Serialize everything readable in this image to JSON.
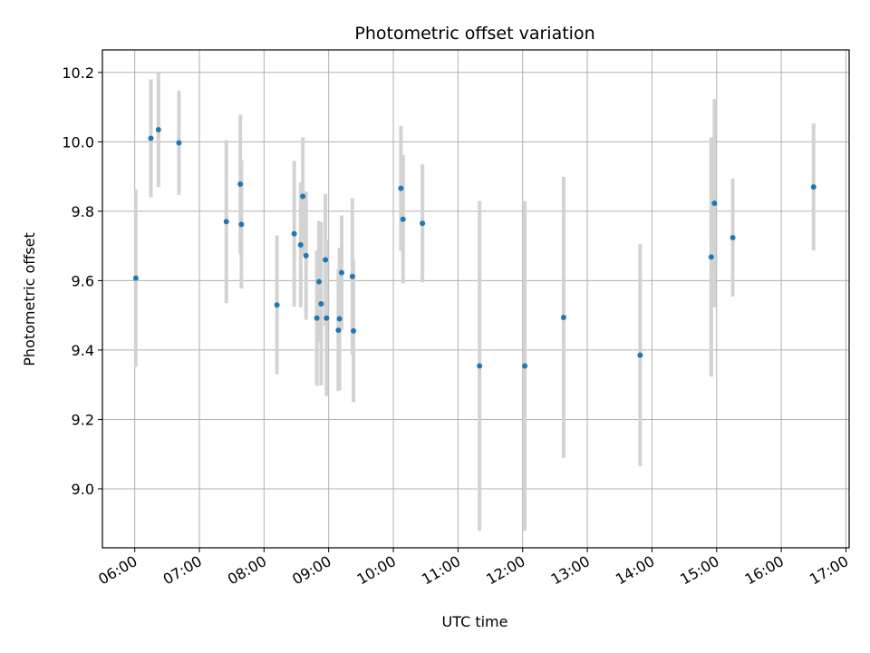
{
  "chart_data": {
    "type": "scatter",
    "title": "Photometric offset variation",
    "xlabel": "UTC time",
    "ylabel": "Photometric offset",
    "x_is_time": true,
    "xlim": [
      "05:30",
      "17:03"
    ],
    "ylim": [
      8.83,
      10.265
    ],
    "x_ticks": [
      "06:00",
      "07:00",
      "08:00",
      "09:00",
      "10:00",
      "11:00",
      "12:00",
      "13:00",
      "14:00",
      "15:00",
      "16:00",
      "17:00"
    ],
    "y_ticks": [
      "9.0",
      "9.2",
      "9.4",
      "9.6",
      "9.8",
      "10.0",
      "10.2"
    ],
    "grid": true,
    "marker_color": "#1f77b4",
    "errorbar_color": "#d3d3d3",
    "series": [
      {
        "points": [
          {
            "x": "06:01",
            "y": 9.607,
            "err": 0.255
          },
          {
            "x": "06:15",
            "y": 10.01,
            "err": 0.17
          },
          {
            "x": "06:22",
            "y": 10.035,
            "err": 0.165
          },
          {
            "x": "06:41",
            "y": 9.997,
            "err": 0.15
          },
          {
            "x": "07:25",
            "y": 9.77,
            "err": 0.235
          },
          {
            "x": "07:38",
            "y": 9.878,
            "err": 0.2
          },
          {
            "x": "07:39",
            "y": 9.762,
            "err": 0.185
          },
          {
            "x": "08:12",
            "y": 9.53,
            "err": 0.2
          },
          {
            "x": "08:28",
            "y": 9.735,
            "err": 0.21
          },
          {
            "x": "08:34",
            "y": 9.703,
            "err": 0.18
          },
          {
            "x": "08:36",
            "y": 9.843,
            "err": 0.17
          },
          {
            "x": "08:39",
            "y": 9.672,
            "err": 0.185
          },
          {
            "x": "08:49",
            "y": 9.492,
            "err": 0.195
          },
          {
            "x": "08:51",
            "y": 9.597,
            "err": 0.175
          },
          {
            "x": "08:53",
            "y": 9.533,
            "err": 0.235
          },
          {
            "x": "08:57",
            "y": 9.66,
            "err": 0.19
          },
          {
            "x": "08:58",
            "y": 9.492,
            "err": 0.225
          },
          {
            "x": "09:09",
            "y": 9.457,
            "err": 0.175
          },
          {
            "x": "09:10",
            "y": 9.49,
            "err": 0.205
          },
          {
            "x": "09:12",
            "y": 9.623,
            "err": 0.165
          },
          {
            "x": "09:22",
            "y": 9.612,
            "err": 0.225
          },
          {
            "x": "09:23",
            "y": 9.455,
            "err": 0.205
          },
          {
            "x": "10:07",
            "y": 9.866,
            "err": 0.18
          },
          {
            "x": "10:09",
            "y": 9.777,
            "err": 0.185
          },
          {
            "x": "10:27",
            "y": 9.765,
            "err": 0.17
          },
          {
            "x": "11:20",
            "y": 9.354,
            "err": 0.475
          },
          {
            "x": "12:02",
            "y": 9.354,
            "err": 0.475
          },
          {
            "x": "12:38",
            "y": 9.494,
            "err": 0.405
          },
          {
            "x": "13:49",
            "y": 9.385,
            "err": 0.32
          },
          {
            "x": "14:55",
            "y": 9.668,
            "err": 0.345
          },
          {
            "x": "14:58",
            "y": 9.823,
            "err": 0.3
          },
          {
            "x": "15:15",
            "y": 9.724,
            "err": 0.17
          },
          {
            "x": "16:30",
            "y": 9.87,
            "err": 0.183
          }
        ]
      }
    ]
  }
}
